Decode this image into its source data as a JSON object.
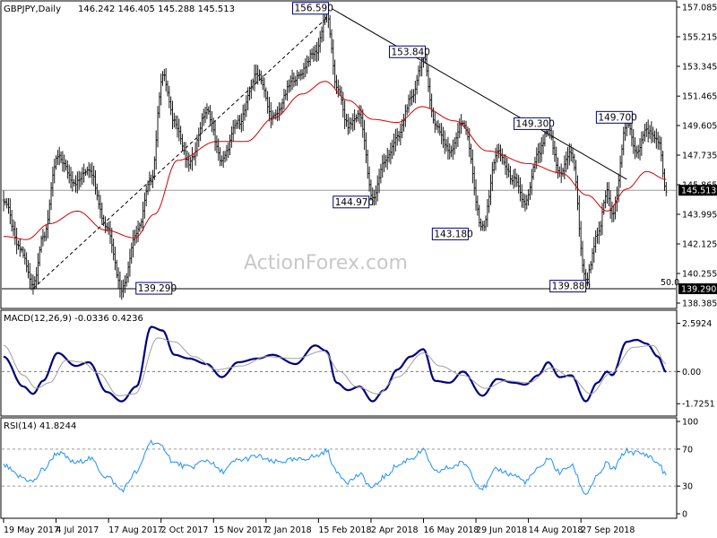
{
  "header": {
    "symbol": "GBPJPY,Daily",
    "ohlc": "146.242 146.405 145.288 145.513"
  },
  "watermark": "ActionForex.com",
  "colors": {
    "price_bars": "#1a1a1a",
    "ma": "#d40000",
    "macd": "#000080",
    "signal": "#a0a0a0",
    "rsi": "#1e90ff",
    "frame": "#000000",
    "current_tag_bg": "#000000",
    "current_tag_fg": "#ffffff",
    "level_tag_bg": "#000000",
    "level_tag_fg": "#ffffff"
  },
  "chart_data": [
    {
      "type": "ohlc",
      "panel": "price",
      "ylim": [
        138.385,
        157.085
      ],
      "yticks": [
        "157.085",
        "155.215",
        "153.345",
        "151.465",
        "149.605",
        "147.735",
        "145.865",
        "143.995",
        "142.125",
        "140.255",
        "138.385"
      ],
      "current_price": "145.513",
      "level_50": {
        "label": "50.0",
        "value": "139.290"
      },
      "annotations": [
        {
          "text": "156.590",
          "value": 156.59,
          "bar": 197
        },
        {
          "text": "153.840",
          "value": 153.84,
          "bar": 256
        },
        {
          "text": "149.300",
          "value": 149.3,
          "bar": 332
        },
        {
          "text": "149.700",
          "value": 149.7,
          "bar": 380
        },
        {
          "text": "144.970",
          "value": 144.97,
          "bar": 225
        },
        {
          "text": "143.180",
          "value": 143.18,
          "bar": 292
        },
        {
          "text": "139.880",
          "value": 139.88,
          "bar": 355
        },
        {
          "text": "139.290",
          "value": 139.29,
          "bar": 72
        }
      ],
      "pivots": [
        [
          0,
          144.9
        ],
        [
          10,
          141.8
        ],
        [
          18,
          139.6
        ],
        [
          24,
          142.5
        ],
        [
          33,
          147.6
        ],
        [
          44,
          146.0
        ],
        [
          52,
          146.9
        ],
        [
          63,
          143.2
        ],
        [
          72,
          139.29
        ],
        [
          81,
          142.8
        ],
        [
          90,
          146.2
        ],
        [
          97,
          152.8
        ],
        [
          104,
          149.9
        ],
        [
          113,
          147.2
        ],
        [
          124,
          150.5
        ],
        [
          133,
          147.4
        ],
        [
          143,
          149.8
        ],
        [
          155,
          152.9
        ],
        [
          164,
          150.1
        ],
        [
          178,
          152.6
        ],
        [
          190,
          154.2
        ],
        [
          197,
          156.59
        ],
        [
          203,
          152.1
        ],
        [
          210,
          149.6
        ],
        [
          217,
          150.3
        ],
        [
          225,
          144.97
        ],
        [
          232,
          147.3
        ],
        [
          240,
          148.8
        ],
        [
          248,
          151.2
        ],
        [
          256,
          153.84
        ],
        [
          263,
          149.7
        ],
        [
          272,
          148.0
        ],
        [
          280,
          149.8
        ],
        [
          292,
          143.18
        ],
        [
          301,
          147.9
        ],
        [
          311,
          146.2
        ],
        [
          318,
          144.7
        ],
        [
          326,
          147.8
        ],
        [
          332,
          149.3
        ],
        [
          339,
          146.6
        ],
        [
          346,
          147.9
        ],
        [
          355,
          139.88
        ],
        [
          362,
          142.6
        ],
        [
          368,
          145.4
        ],
        [
          371,
          143.9
        ],
        [
          380,
          149.7
        ],
        [
          386,
          148.0
        ],
        [
          392,
          149.3
        ],
        [
          399,
          148.7
        ],
        [
          404,
          145.513
        ]
      ],
      "ma_pivots": [
        [
          0,
          142.6
        ],
        [
          14,
          142.4
        ],
        [
          28,
          143.4
        ],
        [
          45,
          144.2
        ],
        [
          62,
          143.0
        ],
        [
          80,
          142.5
        ],
        [
          92,
          144.0
        ],
        [
          106,
          147.4
        ],
        [
          130,
          148.6
        ],
        [
          148,
          148.6
        ],
        [
          165,
          150.1
        ],
        [
          182,
          151.6
        ],
        [
          196,
          152.4
        ],
        [
          210,
          151.2
        ],
        [
          225,
          150.0
        ],
        [
          240,
          149.8
        ],
        [
          255,
          150.8
        ],
        [
          275,
          149.9
        ],
        [
          295,
          148.0
        ],
        [
          320,
          147.2
        ],
        [
          340,
          146.6
        ],
        [
          356,
          145.2
        ],
        [
          368,
          144.2
        ],
        [
          380,
          145.6
        ],
        [
          392,
          146.7
        ],
        [
          404,
          146.2
        ]
      ],
      "trendlines": [
        {
          "from": [
            18,
            139.3
          ],
          "to": [
            197,
            156.4
          ],
          "style": "dashed"
        },
        {
          "from": [
            200,
            157.0
          ],
          "to": [
            380,
            146.2
          ],
          "style": "solid"
        }
      ]
    },
    {
      "type": "line",
      "panel": "macd",
      "title": "MACD(12,26,9) -0.0336 0.4236",
      "ylim": [
        -2.1,
        3.0
      ],
      "yticks": [
        "2.5924",
        "0.00",
        "-1.7251"
      ],
      "zero_label": "0.00",
      "series": [
        {
          "name": "MACD",
          "role": "macd",
          "pivots": [
            [
              0,
              0.8
            ],
            [
              12,
              -0.8
            ],
            [
              18,
              -1.2
            ],
            [
              24,
              -0.5
            ],
            [
              33,
              1.0
            ],
            [
              44,
              0.3
            ],
            [
              52,
              0.5
            ],
            [
              63,
              -1.1
            ],
            [
              72,
              -1.6
            ],
            [
              81,
              -0.8
            ],
            [
              90,
              2.4
            ],
            [
              97,
              2.2
            ],
            [
              104,
              0.9
            ],
            [
              113,
              0.7
            ],
            [
              124,
              0.4
            ],
            [
              133,
              -0.3
            ],
            [
              143,
              0.5
            ],
            [
              155,
              0.7
            ],
            [
              164,
              0.9
            ],
            [
              178,
              0.4
            ],
            [
              190,
              1.4
            ],
            [
              197,
              1.1
            ],
            [
              203,
              -0.6
            ],
            [
              210,
              -1.0
            ],
            [
              217,
              -0.8
            ],
            [
              225,
              -1.6
            ],
            [
              232,
              -1.0
            ],
            [
              240,
              0.1
            ],
            [
              248,
              0.8
            ],
            [
              256,
              1.2
            ],
            [
              263,
              -0.5
            ],
            [
              272,
              -0.6
            ],
            [
              280,
              0.0
            ],
            [
              292,
              -1.3
            ],
            [
              301,
              -0.4
            ],
            [
              311,
              -0.6
            ],
            [
              318,
              -0.7
            ],
            [
              326,
              -0.2
            ],
            [
              332,
              0.5
            ],
            [
              339,
              -0.3
            ],
            [
              346,
              -0.2
            ],
            [
              355,
              -1.6
            ],
            [
              362,
              -0.6
            ],
            [
              368,
              0.0
            ],
            [
              371,
              -0.2
            ],
            [
              380,
              1.6
            ],
            [
              386,
              1.7
            ],
            [
              392,
              1.5
            ],
            [
              399,
              0.8
            ],
            [
              404,
              -0.03
            ]
          ]
        },
        {
          "name": "Signal",
          "role": "signal",
          "pivots": [
            [
              0,
              1.4
            ],
            [
              12,
              -0.2
            ],
            [
              20,
              -0.9
            ],
            [
              28,
              -0.6
            ],
            [
              38,
              0.6
            ],
            [
              48,
              0.5
            ],
            [
              58,
              -0.1
            ],
            [
              70,
              -1.3
            ],
            [
              80,
              -1.2
            ],
            [
              94,
              1.8
            ],
            [
              104,
              1.6
            ],
            [
              116,
              0.8
            ],
            [
              130,
              0.1
            ],
            [
              145,
              0.3
            ],
            [
              160,
              0.8
            ],
            [
              178,
              0.7
            ],
            [
              195,
              1.1
            ],
            [
              205,
              0.0
            ],
            [
              215,
              -0.8
            ],
            [
              228,
              -1.2
            ],
            [
              240,
              -0.3
            ],
            [
              256,
              1.0
            ],
            [
              266,
              0.3
            ],
            [
              280,
              -0.2
            ],
            [
              294,
              -0.9
            ],
            [
              306,
              -0.5
            ],
            [
              320,
              -0.6
            ],
            [
              334,
              0.2
            ],
            [
              346,
              -0.3
            ],
            [
              358,
              -1.2
            ],
            [
              370,
              -0.1
            ],
            [
              384,
              1.3
            ],
            [
              396,
              1.4
            ],
            [
              404,
              0.42
            ]
          ]
        }
      ]
    },
    {
      "type": "line",
      "panel": "rsi",
      "title": "RSI(14) 41.8244",
      "ylim": [
        0,
        100
      ],
      "yticks": [
        "100",
        "70",
        "30",
        "0"
      ],
      "levels": [
        70,
        30
      ],
      "series": [
        {
          "name": "RSI(14)",
          "role": "rsi",
          "pivots": [
            [
              0,
              52
            ],
            [
              10,
              40
            ],
            [
              18,
              35
            ],
            [
              24,
              48
            ],
            [
              33,
              66
            ],
            [
              44,
              55
            ],
            [
              52,
              60
            ],
            [
              63,
              40
            ],
            [
              72,
              26
            ],
            [
              81,
              45
            ],
            [
              90,
              78
            ],
            [
              97,
              72
            ],
            [
              104,
              55
            ],
            [
              113,
              50
            ],
            [
              124,
              58
            ],
            [
              133,
              46
            ],
            [
              143,
              58
            ],
            [
              155,
              62
            ],
            [
              164,
              56
            ],
            [
              178,
              58
            ],
            [
              190,
              62
            ],
            [
              197,
              68
            ],
            [
              203,
              45
            ],
            [
              210,
              35
            ],
            [
              217,
              42
            ],
            [
              225,
              28
            ],
            [
              232,
              40
            ],
            [
              240,
              52
            ],
            [
              248,
              60
            ],
            [
              256,
              68
            ],
            [
              263,
              45
            ],
            [
              272,
              50
            ],
            [
              280,
              55
            ],
            [
              292,
              28
            ],
            [
              301,
              48
            ],
            [
              311,
              42
            ],
            [
              318,
              35
            ],
            [
              326,
              48
            ],
            [
              332,
              60
            ],
            [
              339,
              45
            ],
            [
              346,
              52
            ],
            [
              355,
              22
            ],
            [
              362,
              40
            ],
            [
              368,
              55
            ],
            [
              371,
              48
            ],
            [
              380,
              68
            ],
            [
              386,
              66
            ],
            [
              392,
              64
            ],
            [
              399,
              55
            ],
            [
              404,
              41.8
            ]
          ]
        }
      ]
    }
  ],
  "x_axis": {
    "labels": [
      {
        "text": "19 May 2017",
        "bar": 0
      },
      {
        "text": "4 Jul 2017",
        "bar": 32
      },
      {
        "text": "17 Aug 2017",
        "bar": 64
      },
      {
        "text": "2 Oct 2017",
        "bar": 96
      },
      {
        "text": "15 Nov 2017",
        "bar": 128
      },
      {
        "text": "2 Jan 2018",
        "bar": 160
      },
      {
        "text": "15 Feb 2018",
        "bar": 192
      },
      {
        "text": "2 Apr 2018",
        "bar": 224
      },
      {
        "text": "16 May 2018",
        "bar": 256
      },
      {
        "text": "29 Jun 2018",
        "bar": 288
      },
      {
        "text": "14 Aug 2018",
        "bar": 320
      },
      {
        "text": "27 Sep 2018",
        "bar": 352
      }
    ]
  }
}
